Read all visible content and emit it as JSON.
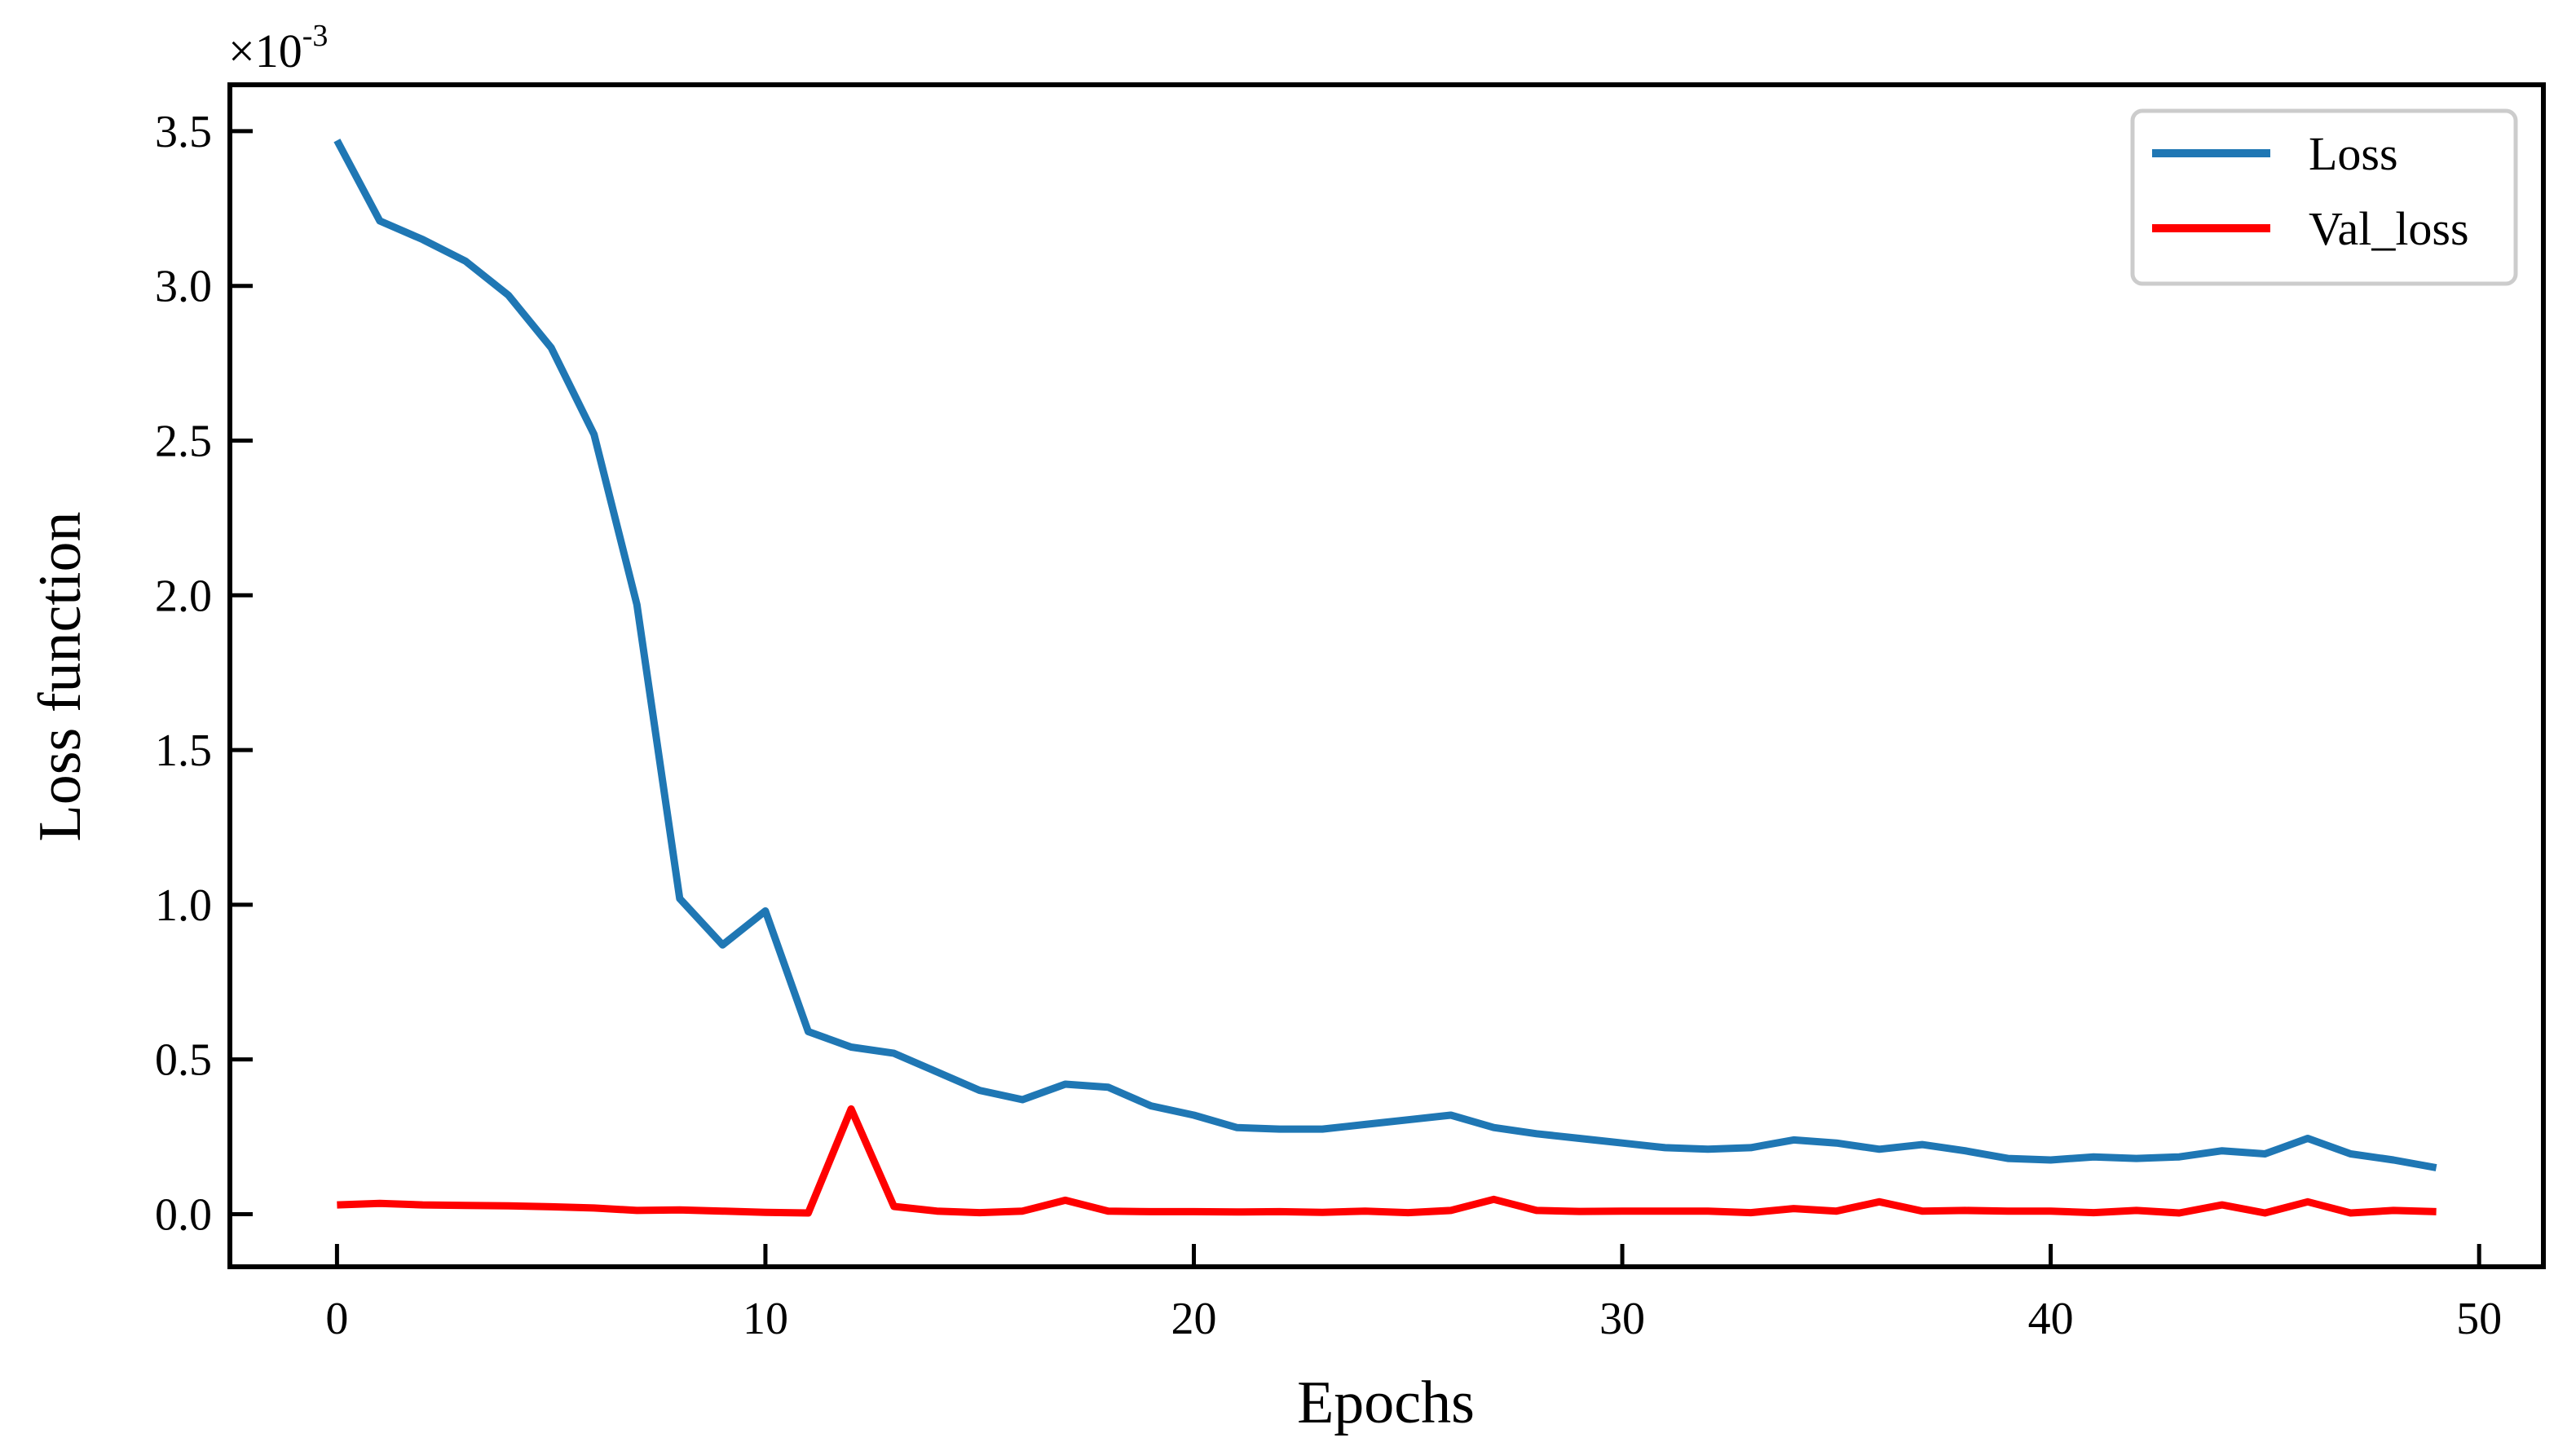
{
  "chart_data": {
    "type": "line",
    "xlabel": "Epochs",
    "ylabel": "Loss function",
    "y_multiplier_base": "×10",
    "y_multiplier_exp": "-3",
    "xlim": [
      -2.5,
      51.5
    ],
    "ylim": [
      -0.17,
      3.65
    ],
    "xticks": [
      0,
      10,
      20,
      30,
      40,
      50
    ],
    "xtick_labels": [
      "0",
      "10",
      "20",
      "30",
      "40",
      "50"
    ],
    "yticks": [
      0.0,
      0.5,
      1.0,
      1.5,
      2.0,
      2.5,
      3.0,
      3.5
    ],
    "ytick_labels": [
      "0.0",
      "0.5",
      "1.0",
      "1.5",
      "2.0",
      "2.5",
      "3.0",
      "3.5"
    ],
    "grid": false,
    "legend_position": "top-right",
    "x": [
      0,
      1,
      2,
      3,
      4,
      5,
      6,
      7,
      8,
      9,
      10,
      11,
      12,
      13,
      14,
      15,
      16,
      17,
      18,
      19,
      20,
      21,
      22,
      23,
      24,
      25,
      26,
      27,
      28,
      29,
      30,
      31,
      32,
      33,
      34,
      35,
      36,
      37,
      38,
      39,
      40,
      41,
      42,
      43,
      44,
      45,
      46,
      47,
      48,
      49
    ],
    "series": [
      {
        "name": "Loss",
        "color": "#1f77b4",
        "values": [
          3.47,
          3.21,
          3.15,
          3.08,
          2.97,
          2.8,
          2.52,
          1.97,
          1.02,
          0.87,
          0.98,
          0.59,
          0.54,
          0.52,
          0.46,
          0.4,
          0.37,
          0.42,
          0.41,
          0.35,
          0.32,
          0.28,
          0.275,
          0.275,
          0.29,
          0.305,
          0.32,
          0.28,
          0.26,
          0.245,
          0.23,
          0.215,
          0.21,
          0.215,
          0.24,
          0.23,
          0.21,
          0.225,
          0.205,
          0.18,
          0.175,
          0.185,
          0.18,
          0.185,
          0.205,
          0.195,
          0.245,
          0.195,
          0.175,
          0.15
        ]
      },
      {
        "name": "Val_loss",
        "color": "#ff0000",
        "values": [
          0.03,
          0.035,
          0.03,
          0.028,
          0.027,
          0.024,
          0.02,
          0.012,
          0.014,
          0.01,
          0.006,
          0.004,
          0.34,
          0.025,
          0.01,
          0.005,
          0.01,
          0.045,
          0.01,
          0.008,
          0.008,
          0.007,
          0.008,
          0.006,
          0.01,
          0.005,
          0.012,
          0.048,
          0.012,
          0.009,
          0.01,
          0.01,
          0.01,
          0.005,
          0.018,
          0.01,
          0.04,
          0.01,
          0.012,
          0.01,
          0.01,
          0.005,
          0.012,
          0.004,
          0.03,
          0.004,
          0.04,
          0.004,
          0.012,
          0.008
        ]
      }
    ]
  }
}
